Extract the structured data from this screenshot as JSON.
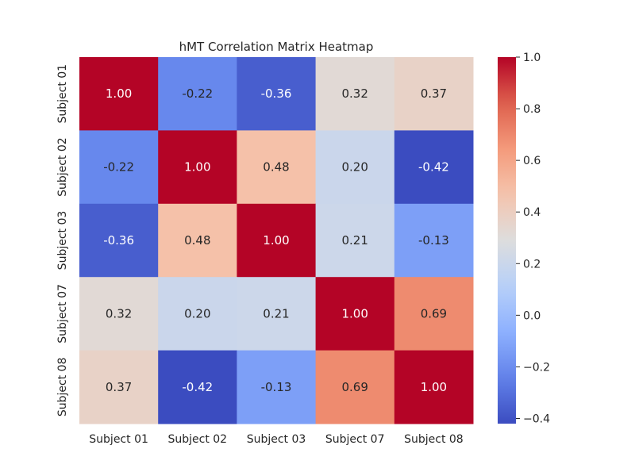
{
  "chart_data": {
    "type": "heatmap",
    "title": "hMT Correlation Matrix Heatmap",
    "x_categories": [
      "Subject 01",
      "Subject 02",
      "Subject 03",
      "Subject 07",
      "Subject 08"
    ],
    "y_categories": [
      "Subject 01",
      "Subject 02",
      "Subject 03",
      "Subject 07",
      "Subject 08"
    ],
    "values": [
      [
        1.0,
        -0.22,
        -0.36,
        0.32,
        0.37
      ],
      [
        -0.22,
        1.0,
        0.48,
        0.2,
        -0.42
      ],
      [
        -0.36,
        0.48,
        1.0,
        0.21,
        -0.13
      ],
      [
        0.32,
        0.2,
        0.21,
        1.0,
        0.69
      ],
      [
        0.37,
        -0.42,
        -0.13,
        0.69,
        1.0
      ]
    ],
    "colormap": "coolwarm",
    "vmin": -0.42,
    "vmax": 1.0,
    "colorbar_ticks": [
      "1.0",
      "0.8",
      "0.6",
      "0.4",
      "0.2",
      "0.0",
      "−0.2",
      "−0.4"
    ],
    "colorbar_tick_values": [
      1.0,
      0.8,
      0.6,
      0.4,
      0.2,
      0.0,
      -0.2,
      -0.4
    ],
    "annotations": true,
    "grid": false
  }
}
